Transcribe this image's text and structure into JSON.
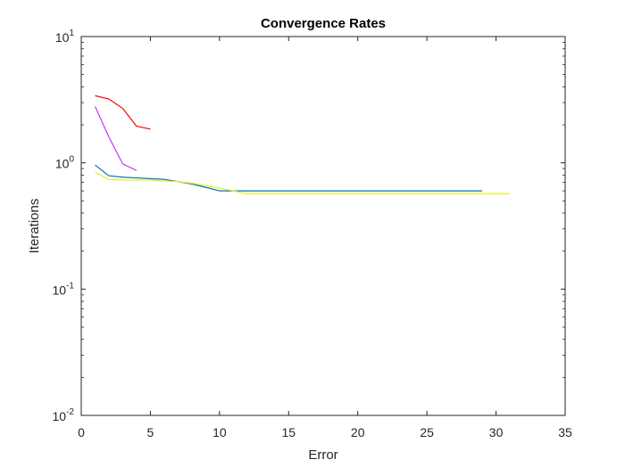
{
  "chart_data": {
    "type": "line",
    "title": "Convergence Rates",
    "xlabel": "Error",
    "ylabel": "Iterations",
    "xlim": [
      0,
      35
    ],
    "ylim": [
      0.01,
      10
    ],
    "yscale": "log",
    "xticks": [
      0,
      5,
      10,
      15,
      20,
      25,
      30,
      35
    ],
    "yticks": [
      {
        "value": 0.01,
        "base": "10",
        "exp": "-2"
      },
      {
        "value": 0.1,
        "base": "10",
        "exp": "-1"
      },
      {
        "value": 1,
        "base": "10",
        "exp": "0"
      },
      {
        "value": 10,
        "base": "10",
        "exp": "1"
      }
    ],
    "grid": false,
    "legend": "none",
    "series": [
      {
        "color": "#ff0000",
        "x": [
          1,
          2,
          3,
          4,
          5
        ],
        "y": [
          3.4,
          3.2,
          2.7,
          1.95,
          1.85
        ]
      },
      {
        "color": "#cc33ff",
        "x": [
          1,
          2,
          3,
          4
        ],
        "y": [
          2.8,
          1.6,
          0.98,
          0.87
        ]
      },
      {
        "color": "#0072bd",
        "x": [
          1,
          2,
          3,
          4,
          5,
          6,
          7,
          8,
          9,
          10,
          11,
          12,
          13,
          14,
          15,
          16,
          17,
          18,
          19,
          20,
          21,
          22,
          23,
          24,
          25,
          26,
          27,
          28,
          29
        ],
        "y": [
          0.96,
          0.79,
          0.77,
          0.76,
          0.75,
          0.74,
          0.71,
          0.68,
          0.64,
          0.6,
          0.6,
          0.6,
          0.6,
          0.6,
          0.6,
          0.6,
          0.6,
          0.6,
          0.6,
          0.6,
          0.6,
          0.6,
          0.6,
          0.6,
          0.6,
          0.6,
          0.6,
          0.6,
          0.6
        ]
      },
      {
        "color": "#e6f01a",
        "x": [
          1,
          2,
          3,
          4,
          5,
          6,
          7,
          8,
          9,
          10,
          11,
          12,
          13,
          14,
          15,
          16,
          17,
          18,
          19,
          20,
          21,
          22,
          23,
          24,
          25,
          26,
          27,
          28,
          29,
          30,
          31
        ],
        "y": [
          0.84,
          0.74,
          0.73,
          0.73,
          0.73,
          0.72,
          0.71,
          0.69,
          0.66,
          0.63,
          0.6,
          0.57,
          0.57,
          0.57,
          0.57,
          0.57,
          0.57,
          0.57,
          0.57,
          0.57,
          0.57,
          0.57,
          0.57,
          0.57,
          0.57,
          0.57,
          0.57,
          0.57,
          0.57,
          0.57,
          0.57
        ]
      }
    ]
  }
}
